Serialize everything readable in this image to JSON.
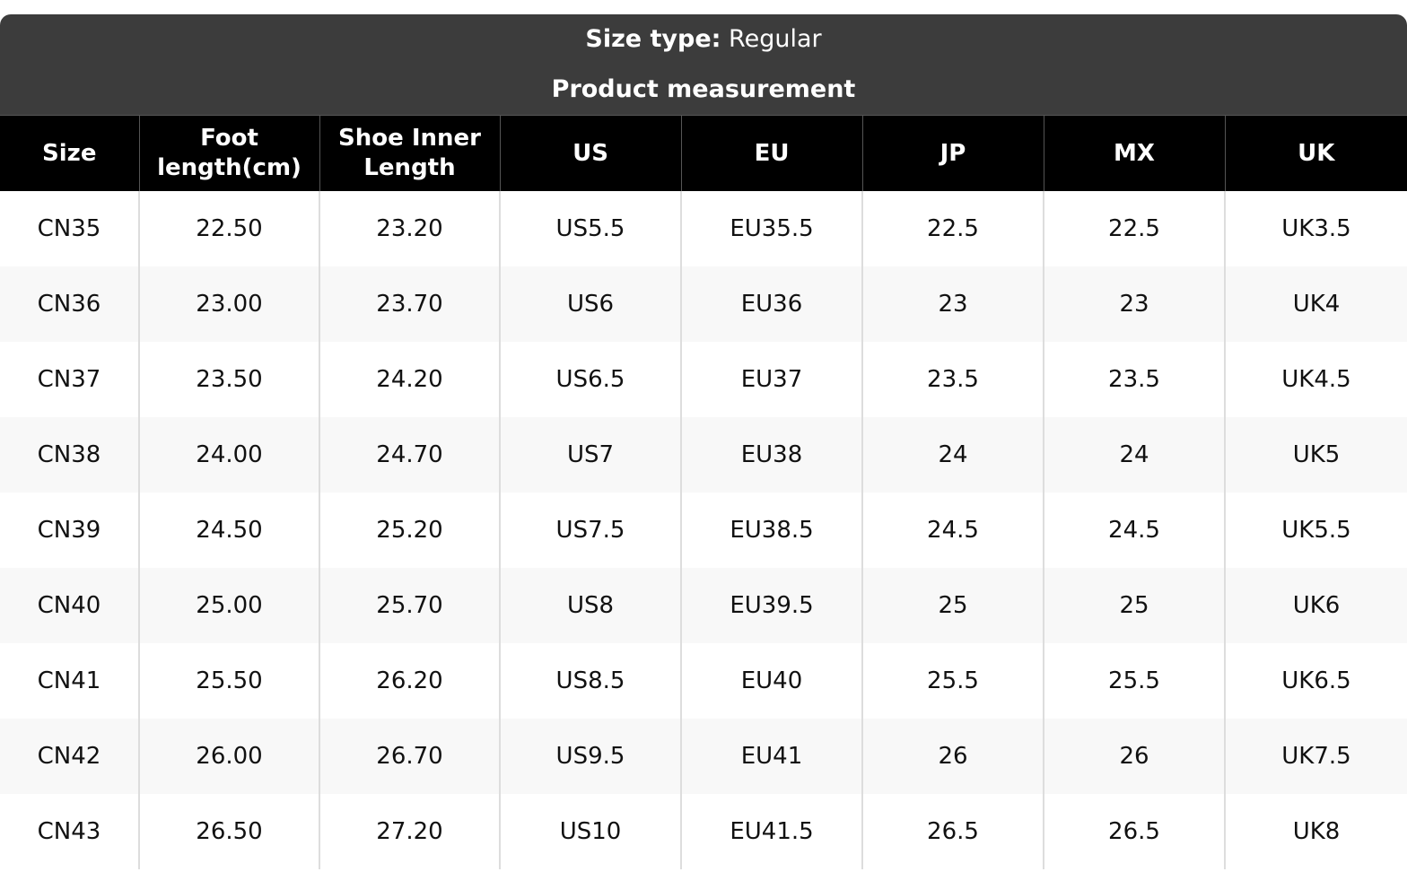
{
  "header": {
    "size_type_label": "Size type:",
    "size_type_value": "Regular",
    "title": "Product measurement"
  },
  "table": {
    "columns": [
      "Size",
      "Foot length(cm)",
      "Shoe Inner Length",
      "US",
      "EU",
      "JP",
      "MX",
      "UK"
    ],
    "rows": [
      [
        "CN35",
        "22.50",
        "23.20",
        "US5.5",
        "EU35.5",
        "22.5",
        "22.5",
        "UK3.5"
      ],
      [
        "CN36",
        "23.00",
        "23.70",
        "US6",
        "EU36",
        "23",
        "23",
        "UK4"
      ],
      [
        "CN37",
        "23.50",
        "24.20",
        "US6.5",
        "EU37",
        "23.5",
        "23.5",
        "UK4.5"
      ],
      [
        "CN38",
        "24.00",
        "24.70",
        "US7",
        "EU38",
        "24",
        "24",
        "UK5"
      ],
      [
        "CN39",
        "24.50",
        "25.20",
        "US7.5",
        "EU38.5",
        "24.5",
        "24.5",
        "UK5.5"
      ],
      [
        "CN40",
        "25.00",
        "25.70",
        "US8",
        "EU39.5",
        "25",
        "25",
        "UK6"
      ],
      [
        "CN41",
        "25.50",
        "26.20",
        "US8.5",
        "EU40",
        "25.5",
        "25.5",
        "UK6.5"
      ],
      [
        "CN42",
        "26.00",
        "26.70",
        "US9.5",
        "EU41",
        "26",
        "26",
        "UK7.5"
      ],
      [
        "CN43",
        "26.50",
        "27.20",
        "US10",
        "EU41.5",
        "26.5",
        "26.5",
        "UK8"
      ]
    ]
  }
}
